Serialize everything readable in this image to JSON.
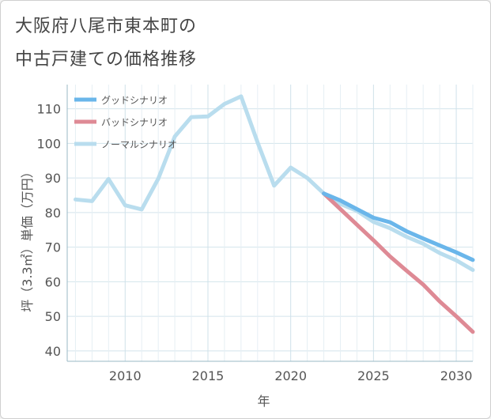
{
  "title_lines": [
    "大阪府八尾市東本町の",
    "中古戸建ての価格推移"
  ],
  "chart_data": {
    "type": "line",
    "title": "大阪府八尾市東本町の中古戸建ての価格推移",
    "xlabel": "年",
    "ylabel": "坪（3.3㎡）単価（万円）",
    "xlim": [
      2006.5,
      2031
    ],
    "ylim": [
      37,
      117
    ],
    "x_ticks": [
      2010,
      2015,
      2020,
      2025,
      2030
    ],
    "y_ticks": [
      40,
      50,
      60,
      70,
      80,
      90,
      100,
      110
    ],
    "grid": true,
    "legend_position": "top-left",
    "series": [
      {
        "name": "グッドシナリオ",
        "color": "#6ab6ea",
        "x": [
          2022,
          2023,
          2024,
          2025,
          2026,
          2027,
          2028,
          2029,
          2030,
          2031
        ],
        "y": [
          85.5,
          83.5,
          81,
          78.5,
          77.2,
          74.6,
          72.5,
          70.5,
          68.5,
          66.3
        ]
      },
      {
        "name": "バッドシナリオ",
        "color": "#de8a95",
        "x": [
          2022,
          2023,
          2024,
          2025,
          2026,
          2027,
          2028,
          2029,
          2030,
          2031
        ],
        "y": [
          85.5,
          81,
          76.5,
          72,
          67.3,
          63.2,
          59.2,
          54.3,
          50,
          45.5
        ]
      },
      {
        "name": "ノーマルシナリオ",
        "color": "#b9ddee",
        "x": [
          2007,
          2008,
          2009,
          2010,
          2011,
          2012,
          2013,
          2014,
          2015,
          2016,
          2017,
          2018,
          2019,
          2020,
          2021,
          2022,
          2023,
          2024,
          2025,
          2026,
          2027,
          2028,
          2029,
          2030,
          2031
        ],
        "y": [
          83.8,
          83.3,
          89.7,
          82.1,
          80.9,
          89.8,
          102,
          107.6,
          107.8,
          111.4,
          113.6,
          100.3,
          87.8,
          93,
          90,
          85.5,
          82.5,
          80.5,
          77.3,
          75.5,
          73,
          71,
          68.3,
          66.2,
          63.4
        ]
      }
    ]
  }
}
